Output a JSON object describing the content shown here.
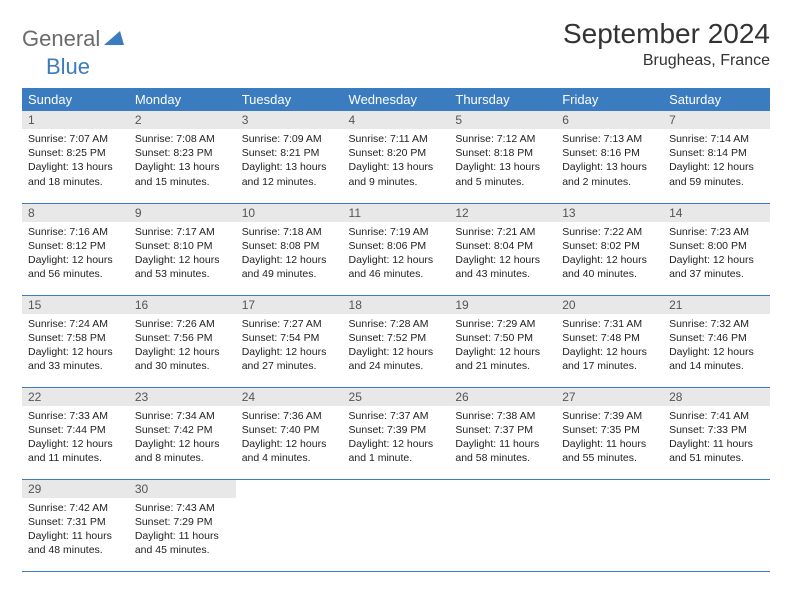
{
  "logo": {
    "text1": "General",
    "text2": "Blue"
  },
  "title": "September 2024",
  "location": "Brugheas, France",
  "colors": {
    "header_bg": "#3b7bbf",
    "header_fg": "#ffffff",
    "daynum_bg": "#e8e8e8",
    "daynum_fg": "#555555",
    "row_border": "#3b7bbf",
    "logo_gray": "#6b6b6b",
    "logo_blue": "#3b7bbf"
  },
  "weekdays": [
    "Sunday",
    "Monday",
    "Tuesday",
    "Wednesday",
    "Thursday",
    "Friday",
    "Saturday"
  ],
  "weeks": [
    [
      {
        "n": "1",
        "sr": "Sunrise: 7:07 AM",
        "ss": "Sunset: 8:25 PM",
        "d1": "Daylight: 13 hours",
        "d2": "and 18 minutes."
      },
      {
        "n": "2",
        "sr": "Sunrise: 7:08 AM",
        "ss": "Sunset: 8:23 PM",
        "d1": "Daylight: 13 hours",
        "d2": "and 15 minutes."
      },
      {
        "n": "3",
        "sr": "Sunrise: 7:09 AM",
        "ss": "Sunset: 8:21 PM",
        "d1": "Daylight: 13 hours",
        "d2": "and 12 minutes."
      },
      {
        "n": "4",
        "sr": "Sunrise: 7:11 AM",
        "ss": "Sunset: 8:20 PM",
        "d1": "Daylight: 13 hours",
        "d2": "and 9 minutes."
      },
      {
        "n": "5",
        "sr": "Sunrise: 7:12 AM",
        "ss": "Sunset: 8:18 PM",
        "d1": "Daylight: 13 hours",
        "d2": "and 5 minutes."
      },
      {
        "n": "6",
        "sr": "Sunrise: 7:13 AM",
        "ss": "Sunset: 8:16 PM",
        "d1": "Daylight: 13 hours",
        "d2": "and 2 minutes."
      },
      {
        "n": "7",
        "sr": "Sunrise: 7:14 AM",
        "ss": "Sunset: 8:14 PM",
        "d1": "Daylight: 12 hours",
        "d2": "and 59 minutes."
      }
    ],
    [
      {
        "n": "8",
        "sr": "Sunrise: 7:16 AM",
        "ss": "Sunset: 8:12 PM",
        "d1": "Daylight: 12 hours",
        "d2": "and 56 minutes."
      },
      {
        "n": "9",
        "sr": "Sunrise: 7:17 AM",
        "ss": "Sunset: 8:10 PM",
        "d1": "Daylight: 12 hours",
        "d2": "and 53 minutes."
      },
      {
        "n": "10",
        "sr": "Sunrise: 7:18 AM",
        "ss": "Sunset: 8:08 PM",
        "d1": "Daylight: 12 hours",
        "d2": "and 49 minutes."
      },
      {
        "n": "11",
        "sr": "Sunrise: 7:19 AM",
        "ss": "Sunset: 8:06 PM",
        "d1": "Daylight: 12 hours",
        "d2": "and 46 minutes."
      },
      {
        "n": "12",
        "sr": "Sunrise: 7:21 AM",
        "ss": "Sunset: 8:04 PM",
        "d1": "Daylight: 12 hours",
        "d2": "and 43 minutes."
      },
      {
        "n": "13",
        "sr": "Sunrise: 7:22 AM",
        "ss": "Sunset: 8:02 PM",
        "d1": "Daylight: 12 hours",
        "d2": "and 40 minutes."
      },
      {
        "n": "14",
        "sr": "Sunrise: 7:23 AM",
        "ss": "Sunset: 8:00 PM",
        "d1": "Daylight: 12 hours",
        "d2": "and 37 minutes."
      }
    ],
    [
      {
        "n": "15",
        "sr": "Sunrise: 7:24 AM",
        "ss": "Sunset: 7:58 PM",
        "d1": "Daylight: 12 hours",
        "d2": "and 33 minutes."
      },
      {
        "n": "16",
        "sr": "Sunrise: 7:26 AM",
        "ss": "Sunset: 7:56 PM",
        "d1": "Daylight: 12 hours",
        "d2": "and 30 minutes."
      },
      {
        "n": "17",
        "sr": "Sunrise: 7:27 AM",
        "ss": "Sunset: 7:54 PM",
        "d1": "Daylight: 12 hours",
        "d2": "and 27 minutes."
      },
      {
        "n": "18",
        "sr": "Sunrise: 7:28 AM",
        "ss": "Sunset: 7:52 PM",
        "d1": "Daylight: 12 hours",
        "d2": "and 24 minutes."
      },
      {
        "n": "19",
        "sr": "Sunrise: 7:29 AM",
        "ss": "Sunset: 7:50 PM",
        "d1": "Daylight: 12 hours",
        "d2": "and 21 minutes."
      },
      {
        "n": "20",
        "sr": "Sunrise: 7:31 AM",
        "ss": "Sunset: 7:48 PM",
        "d1": "Daylight: 12 hours",
        "d2": "and 17 minutes."
      },
      {
        "n": "21",
        "sr": "Sunrise: 7:32 AM",
        "ss": "Sunset: 7:46 PM",
        "d1": "Daylight: 12 hours",
        "d2": "and 14 minutes."
      }
    ],
    [
      {
        "n": "22",
        "sr": "Sunrise: 7:33 AM",
        "ss": "Sunset: 7:44 PM",
        "d1": "Daylight: 12 hours",
        "d2": "and 11 minutes."
      },
      {
        "n": "23",
        "sr": "Sunrise: 7:34 AM",
        "ss": "Sunset: 7:42 PM",
        "d1": "Daylight: 12 hours",
        "d2": "and 8 minutes."
      },
      {
        "n": "24",
        "sr": "Sunrise: 7:36 AM",
        "ss": "Sunset: 7:40 PM",
        "d1": "Daylight: 12 hours",
        "d2": "and 4 minutes."
      },
      {
        "n": "25",
        "sr": "Sunrise: 7:37 AM",
        "ss": "Sunset: 7:39 PM",
        "d1": "Daylight: 12 hours",
        "d2": "and 1 minute."
      },
      {
        "n": "26",
        "sr": "Sunrise: 7:38 AM",
        "ss": "Sunset: 7:37 PM",
        "d1": "Daylight: 11 hours",
        "d2": "and 58 minutes."
      },
      {
        "n": "27",
        "sr": "Sunrise: 7:39 AM",
        "ss": "Sunset: 7:35 PM",
        "d1": "Daylight: 11 hours",
        "d2": "and 55 minutes."
      },
      {
        "n": "28",
        "sr": "Sunrise: 7:41 AM",
        "ss": "Sunset: 7:33 PM",
        "d1": "Daylight: 11 hours",
        "d2": "and 51 minutes."
      }
    ],
    [
      {
        "n": "29",
        "sr": "Sunrise: 7:42 AM",
        "ss": "Sunset: 7:31 PM",
        "d1": "Daylight: 11 hours",
        "d2": "and 48 minutes."
      },
      {
        "n": "30",
        "sr": "Sunrise: 7:43 AM",
        "ss": "Sunset: 7:29 PM",
        "d1": "Daylight: 11 hours",
        "d2": "and 45 minutes."
      },
      null,
      null,
      null,
      null,
      null
    ]
  ]
}
